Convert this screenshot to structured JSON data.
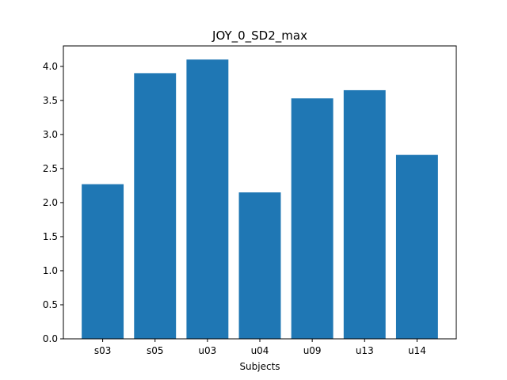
{
  "chart_data": {
    "type": "bar",
    "title": "JOY_0_SD2_max",
    "xlabel": "Subjects",
    "ylabel": "",
    "categories": [
      "s03",
      "s05",
      "u03",
      "u04",
      "u09",
      "u13",
      "u14"
    ],
    "values": [
      2.27,
      3.9,
      4.1,
      2.15,
      3.53,
      3.65,
      2.7
    ],
    "ylim": [
      0,
      4.3
    ],
    "yticks": [
      "0.0",
      "0.5",
      "1.0",
      "1.5",
      "2.0",
      "2.5",
      "3.0",
      "3.5",
      "4.0"
    ],
    "bar_color": "#1f77b4",
    "grid": false,
    "legend": "none"
  }
}
